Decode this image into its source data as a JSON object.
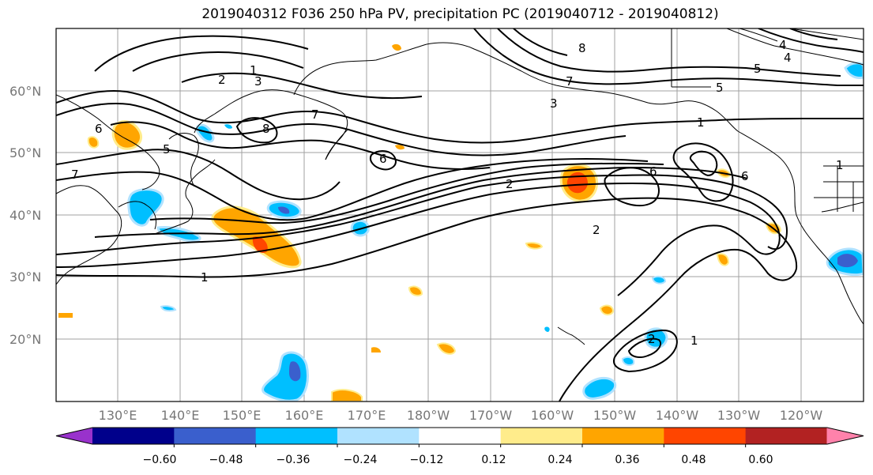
{
  "title": "2019040312 F036 250 hPa PV, precipitation PC (2019040712 - 2019040812)",
  "map": {
    "lat_labels": [
      "60°N",
      "50°N",
      "40°N",
      "30°N",
      "20°N"
    ],
    "lon_labels": [
      "130°E",
      "140°E",
      "150°E",
      "160°E",
      "170°E",
      "180°W",
      "170°W",
      "160°W",
      "150°W",
      "140°W",
      "130°W",
      "120°W"
    ],
    "contour_labels": [
      "1",
      "2",
      "3",
      "8",
      "7",
      "5",
      "6",
      "7",
      "1",
      "2",
      "8",
      "7",
      "3",
      "5",
      "4",
      "4",
      "5",
      "1",
      "6",
      "6",
      "6",
      "1",
      "2",
      "1",
      "2"
    ]
  },
  "colorbar": {
    "colors": [
      "#9932cc",
      "#00008b",
      "#3a5fcd",
      "#00bfff",
      "#b0e2ff",
      "#ffffff",
      "#ffec8b",
      "#ffa500",
      "#ff4500",
      "#b22222",
      "#ff82ab"
    ],
    "tick_labels": [
      "−0.60",
      "−0.48",
      "−0.36",
      "−0.24",
      "−0.12",
      "0.12",
      "0.24",
      "0.36",
      "0.48",
      "0.60"
    ]
  },
  "colors": {
    "grid": "#999999",
    "coast": "#000000",
    "contour": "#000000"
  }
}
